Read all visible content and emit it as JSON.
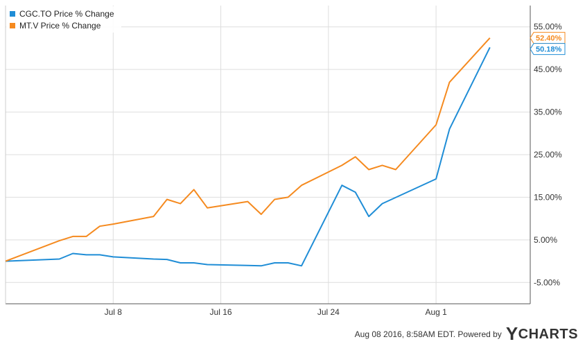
{
  "chart_data": {
    "type": "line",
    "x_ticks": [
      {
        "date": "2016-07-08",
        "label": "Jul 8"
      },
      {
        "date": "2016-07-16",
        "label": "Jul 16"
      },
      {
        "date": "2016-07-24",
        "label": "Jul 24"
      },
      {
        "date": "2016-08-01",
        "label": "Aug 1"
      }
    ],
    "y_ticks": [
      -5,
      5,
      15,
      25,
      35,
      45,
      55
    ],
    "y_tick_labels": [
      "-5.00%",
      "5.00%",
      "15.00%",
      "25.00%",
      "35.00%",
      "45.00%",
      "55.00%"
    ],
    "xlim": [
      "2016-06-30",
      "2016-08-08"
    ],
    "ylim": [
      -10,
      60
    ],
    "grid": true,
    "legend_position": "top-left",
    "series": [
      {
        "name": "CGC.TO Price % Change",
        "color": "#1f8dd6",
        "end_label": "50.18%",
        "points": [
          [
            "2016-06-30",
            0.0
          ],
          [
            "2016-07-04",
            0.5
          ],
          [
            "2016-07-05",
            1.8
          ],
          [
            "2016-07-06",
            1.5
          ],
          [
            "2016-07-07",
            1.5
          ],
          [
            "2016-07-08",
            1.0
          ],
          [
            "2016-07-11",
            0.5
          ],
          [
            "2016-07-12",
            0.4
          ],
          [
            "2016-07-13",
            -0.4
          ],
          [
            "2016-07-14",
            -0.4
          ],
          [
            "2016-07-15",
            -0.8
          ],
          [
            "2016-07-18",
            -1.0
          ],
          [
            "2016-07-19",
            -1.1
          ],
          [
            "2016-07-20",
            -0.4
          ],
          [
            "2016-07-21",
            -0.4
          ],
          [
            "2016-07-22",
            -1.1
          ],
          [
            "2016-07-25",
            17.8
          ],
          [
            "2016-07-26",
            16.2
          ],
          [
            "2016-07-27",
            10.5
          ],
          [
            "2016-07-28",
            13.5
          ],
          [
            "2016-08-01",
            19.3
          ],
          [
            "2016-08-02",
            31.0
          ],
          [
            "2016-08-05",
            50.18
          ]
        ]
      },
      {
        "name": "MT.V Price % Change",
        "color": "#f58a1f",
        "end_label": "52.40%",
        "points": [
          [
            "2016-06-30",
            0.0
          ],
          [
            "2016-07-04",
            4.8
          ],
          [
            "2016-07-05",
            5.8
          ],
          [
            "2016-07-06",
            5.8
          ],
          [
            "2016-07-07",
            8.2
          ],
          [
            "2016-07-08",
            8.7
          ],
          [
            "2016-07-11",
            10.5
          ],
          [
            "2016-07-12",
            14.5
          ],
          [
            "2016-07-13",
            13.5
          ],
          [
            "2016-07-14",
            16.8
          ],
          [
            "2016-07-15",
            12.5
          ],
          [
            "2016-07-18",
            14.0
          ],
          [
            "2016-07-19",
            11.0
          ],
          [
            "2016-07-20",
            14.5
          ],
          [
            "2016-07-21",
            15.0
          ],
          [
            "2016-07-22",
            17.8
          ],
          [
            "2016-07-25",
            22.5
          ],
          [
            "2016-07-26",
            24.5
          ],
          [
            "2016-07-27",
            21.5
          ],
          [
            "2016-07-28",
            22.5
          ],
          [
            "2016-07-29",
            21.5
          ],
          [
            "2016-08-01",
            32.0
          ],
          [
            "2016-08-02",
            42.0
          ],
          [
            "2016-08-05",
            52.4
          ]
        ]
      }
    ]
  },
  "footer": {
    "text": "Aug 08 2016, 8:58AM EDT.  Powered by",
    "brand_initial": "Y",
    "brand_rest": "CHARTS"
  }
}
